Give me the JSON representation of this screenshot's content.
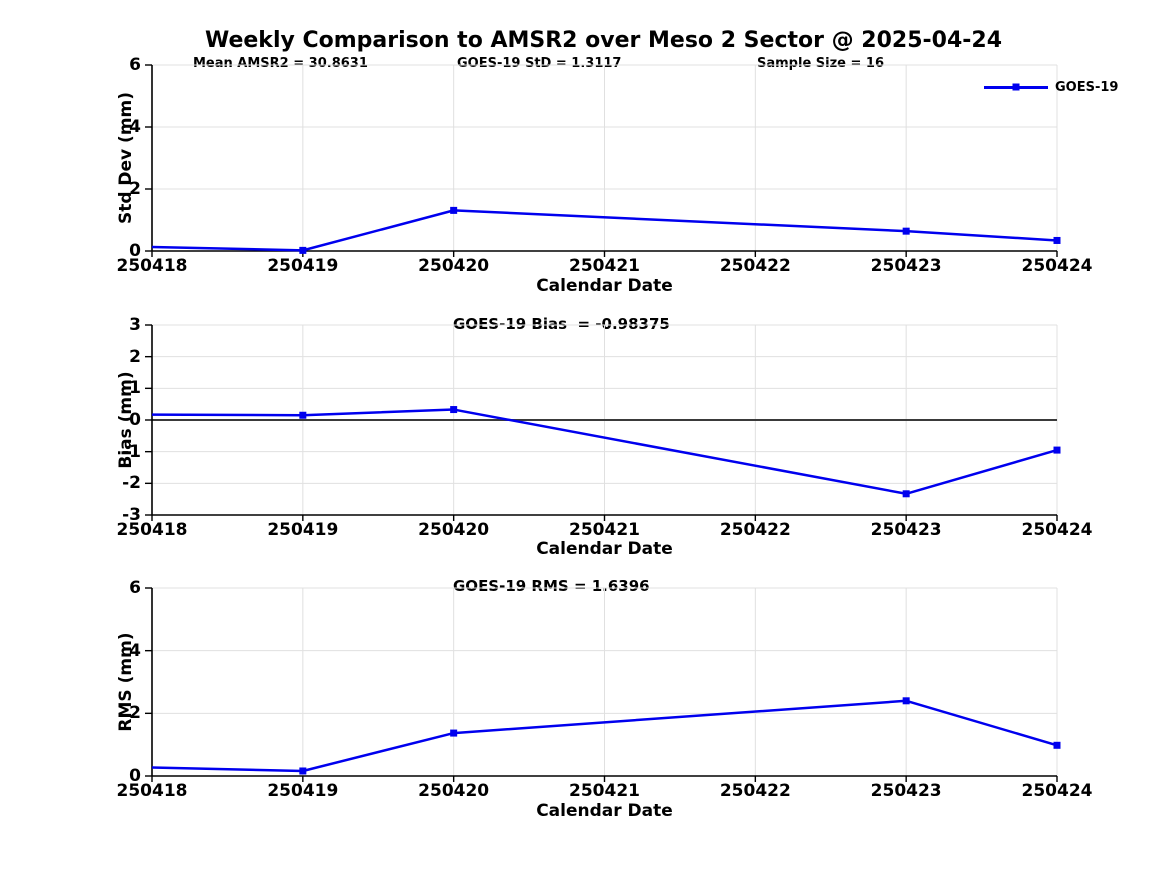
{
  "figure": {
    "title": "Weekly Comparison to AMSR2 over Meso 2 Sector @ 2025-04-24",
    "legend": {
      "label": "GOES-19"
    },
    "colors": {
      "series": "#0000EE",
      "grid": "#E0E0E0",
      "axis": "#000000",
      "zero_line": "#3A3A3A",
      "background": "#FFFFFF"
    }
  },
  "chart_data": [
    {
      "type": "line",
      "id": "std-dev",
      "annotations": [
        "Mean AMSR2 = 30.8631",
        "GOES-19 StD = 1.3117",
        "Sample Size = 16"
      ],
      "xlabel": "Calendar Date",
      "ylabel": "Std Dev (mm)",
      "x_ticks": [
        "250418",
        "250419",
        "250420",
        "250421",
        "250422",
        "250423",
        "250424"
      ],
      "xlim": [
        250418,
        250424
      ],
      "ylim": [
        0,
        6
      ],
      "y_ticks": [
        0,
        2,
        4,
        6
      ],
      "grid": true,
      "zero_line": false,
      "legend_position": "top-right",
      "series": [
        {
          "name": "GOES-19",
          "x": [
            250418,
            250419,
            250420,
            250423,
            250424
          ],
          "y": [
            0.13,
            0.02,
            1.31,
            0.64,
            0.34
          ]
        }
      ]
    },
    {
      "type": "line",
      "id": "bias",
      "annotations": [
        "GOES-19 Bias  = -0.98375"
      ],
      "xlabel": "Calendar Date",
      "ylabel": "Bias (mm)",
      "x_ticks": [
        "250418",
        "250419",
        "250420",
        "250421",
        "250422",
        "250423",
        "250424"
      ],
      "xlim": [
        250418,
        250424
      ],
      "ylim": [
        -3,
        3
      ],
      "y_ticks": [
        -3,
        -2,
        -1,
        0,
        1,
        2,
        3
      ],
      "grid": true,
      "zero_line": true,
      "series": [
        {
          "name": "GOES-19",
          "x": [
            250418,
            250419,
            250420,
            250423,
            250424
          ],
          "y": [
            0.17,
            0.15,
            0.33,
            -2.33,
            -0.95
          ]
        }
      ]
    },
    {
      "type": "line",
      "id": "rms",
      "annotations": [
        "GOES-19 RMS = 1.6396"
      ],
      "xlabel": "Calendar Date",
      "ylabel": "RMS (mm)",
      "x_ticks": [
        "250418",
        "250419",
        "250420",
        "250421",
        "250422",
        "250423",
        "250424"
      ],
      "xlim": [
        250418,
        250424
      ],
      "ylim": [
        0,
        6
      ],
      "y_ticks": [
        0,
        2,
        4,
        6
      ],
      "grid": true,
      "zero_line": false,
      "series": [
        {
          "name": "GOES-19",
          "x": [
            250418,
            250419,
            250420,
            250423,
            250424
          ],
          "y": [
            0.27,
            0.16,
            1.37,
            2.4,
            0.98
          ]
        }
      ]
    }
  ]
}
